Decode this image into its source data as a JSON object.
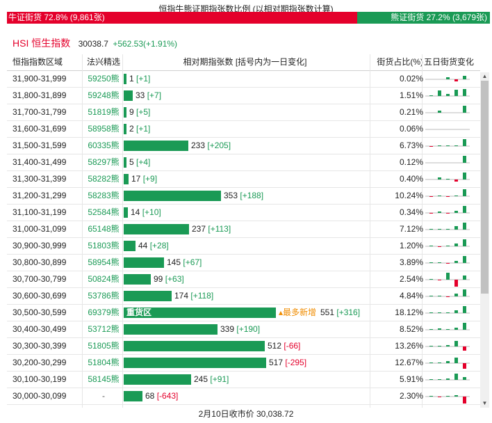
{
  "title": "恒指牛熊证期指张数比例 (以相对期指张数计算)",
  "ratio": {
    "bull_label": "牛证街货 72.8% (9,861张)",
    "bear_label": "熊证街货 27.2% (3,679张)",
    "bull_pct": 72.8,
    "bull_color": "#e4002b",
    "bear_color": "#1a9a55"
  },
  "index": {
    "name": "HSI 恒生指数",
    "value": "30038.7",
    "change": "+562.53(+1.91%)"
  },
  "headers": {
    "zone": "恒指指数区域",
    "pick": "法兴精选",
    "contracts": "相对期指张数 [括号内为一日变化]",
    "share": "街货占比(%)",
    "five_day": "五日街货变化"
  },
  "rows": [
    {
      "zone": "31,900-31,999",
      "code": "59250熊",
      "contracts": 1,
      "change": "+1",
      "share": "0.02%",
      "spark": [
        0,
        0,
        3,
        -3,
        5
      ]
    },
    {
      "zone": "31,800-31,899",
      "code": "59248熊",
      "contracts": 33,
      "change": "+7",
      "share": "1.51%",
      "spark": [
        1,
        8,
        3,
        9,
        10
      ]
    },
    {
      "zone": "31,700-31,799",
      "code": "51819熊",
      "contracts": 9,
      "change": "+5",
      "share": "0.21%",
      "spark": [
        0,
        3,
        0,
        0,
        10
      ]
    },
    {
      "zone": "31,600-31,699",
      "code": "58958熊",
      "contracts": 2,
      "change": "+1",
      "share": "0.06%",
      "spark": [
        0,
        0,
        0,
        0,
        0
      ]
    },
    {
      "zone": "31,500-31,599",
      "code": "60335熊",
      "contracts": 233,
      "change": "+205",
      "share": "6.73%",
      "spark": [
        -1,
        1,
        1,
        1,
        10
      ]
    },
    {
      "zone": "31,400-31,499",
      "code": "58297熊",
      "contracts": 5,
      "change": "+4",
      "share": "0.12%",
      "spark": [
        0,
        0,
        0,
        0,
        10
      ]
    },
    {
      "zone": "31,300-31,399",
      "code": "58282熊",
      "contracts": 17,
      "change": "+9",
      "share": "0.40%",
      "spark": [
        0,
        3,
        1,
        -3,
        10
      ]
    },
    {
      "zone": "31,200-31,299",
      "code": "58283熊",
      "contracts": 353,
      "change": "+188",
      "share": "10.24%",
      "spark": [
        -1,
        1,
        -1,
        1,
        10
      ]
    },
    {
      "zone": "31,100-31,199",
      "code": "52584熊",
      "contracts": 14,
      "change": "+10",
      "share": "0.34%",
      "spark": [
        -1,
        2,
        -1,
        3,
        10
      ]
    },
    {
      "zone": "31,000-31,099",
      "code": "65148熊",
      "contracts": 237,
      "change": "+113",
      "share": "7.12%",
      "spark": [
        1,
        1,
        1,
        5,
        10
      ]
    },
    {
      "zone": "30,900-30,999",
      "code": "51803熊",
      "contracts": 44,
      "change": "+28",
      "share": "1.20%",
      "spark": [
        1,
        -1,
        1,
        4,
        10
      ]
    },
    {
      "zone": "30,800-30,899",
      "code": "58954熊",
      "contracts": 145,
      "change": "+67",
      "share": "3.89%",
      "spark": [
        1,
        1,
        -1,
        3,
        10
      ]
    },
    {
      "zone": "30,700-30,799",
      "code": "50824熊",
      "contracts": 99,
      "change": "+63",
      "share": "2.54%",
      "spark": [
        1,
        -1,
        10,
        -10,
        6
      ]
    },
    {
      "zone": "30,600-30,699",
      "code": "53786熊",
      "contracts": 174,
      "change": "+118",
      "share": "4.84%",
      "spark": [
        1,
        1,
        -1,
        4,
        10
      ]
    },
    {
      "zone": "30,500-30,599",
      "code": "69379熊",
      "contracts": 551,
      "change": "+316",
      "share": "18.12%",
      "spark": [
        1,
        1,
        1,
        4,
        10
      ],
      "heavy": true,
      "heavy_label": "重货区",
      "most_label": "最多新增"
    },
    {
      "zone": "30,400-30,499",
      "code": "53712熊",
      "contracts": 339,
      "change": "+190",
      "share": "8.52%",
      "spark": [
        1,
        2,
        1,
        3,
        10
      ]
    },
    {
      "zone": "30,300-30,399",
      "code": "51805熊",
      "contracts": 512,
      "change": "-66",
      "share": "13.26%",
      "spark": [
        1,
        1,
        2,
        8,
        -6
      ]
    },
    {
      "zone": "30,200-30,299",
      "code": "51804熊",
      "contracts": 517,
      "change": "-295",
      "share": "12.67%",
      "spark": [
        1,
        1,
        3,
        8,
        -8
      ]
    },
    {
      "zone": "30,100-30,199",
      "code": "58145熊",
      "contracts": 245,
      "change": "+91",
      "share": "5.91%",
      "spark": [
        1,
        1,
        2,
        9,
        4
      ]
    },
    {
      "zone": "30,000-30,099",
      "code": "-",
      "contracts": 68,
      "change": "-643",
      "share": "2.30%",
      "spark": [
        1,
        -1,
        1,
        2,
        -10
      ]
    }
  ],
  "footer": "2月10日收市价 30,038.72",
  "colors": {
    "up": "#1a9a55",
    "down": "#e4002b",
    "highlight": "#f08c00"
  }
}
